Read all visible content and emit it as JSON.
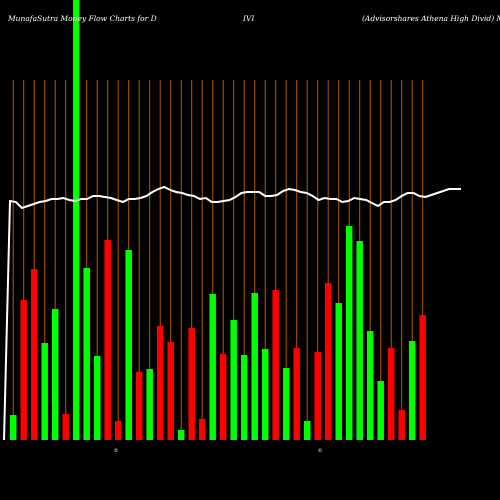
{
  "title": {
    "left": "MunafaSutra  Money Flow  Charts for D",
    "middle": "IVI",
    "right": "(Advisorshares Athena  High Divid) Mu"
  },
  "colors": {
    "background": "#000000",
    "gridline": "#b35900",
    "inflow": "#00ff00",
    "outflow": "#ff0000",
    "line": "#ffffff"
  },
  "chart_data": {
    "type": "bar",
    "title": "MunafaSutra  Money Flow  Charts for DIVI (Advisorshares Athena  High Divid) Mu",
    "ylim": [
      0,
      440
    ],
    "x_labels": [
      "",
      "",
      "",
      "",
      "",
      "",
      "",
      "",
      "",
      "",
      "",
      "",
      "",
      "",
      "",
      "",
      "",
      "",
      "",
      "",
      "",
      "",
      "",
      "",
      "",
      "",
      "",
      "",
      "",
      "",
      "",
      "",
      "",
      "",
      "",
      "",
      "",
      "",
      "",
      "",
      "",
      "",
      "",
      "",
      "",
      "",
      "",
      "",
      "",
      "",
      "",
      "",
      "",
      "",
      "",
      "",
      "",
      "",
      "",
      ""
    ],
    "center_marks": [
      "©",
      "©"
    ],
    "bars": [
      {
        "value": 25,
        "dir": "up"
      },
      {
        "value": 140,
        "dir": "down"
      },
      {
        "value": 171,
        "dir": "down"
      },
      {
        "value": 97,
        "dir": "up"
      },
      {
        "value": 131,
        "dir": "up"
      },
      {
        "value": 26,
        "dir": "down"
      },
      {
        "value": 440,
        "dir": "up"
      },
      {
        "value": 172,
        "dir": "up"
      },
      {
        "value": 84,
        "dir": "up"
      },
      {
        "value": 200,
        "dir": "down"
      },
      {
        "value": 19,
        "dir": "down"
      },
      {
        "value": 190,
        "dir": "up"
      },
      {
        "value": 68,
        "dir": "down"
      },
      {
        "value": 71,
        "dir": "up"
      },
      {
        "value": 114,
        "dir": "down"
      },
      {
        "value": 98,
        "dir": "down"
      },
      {
        "value": 10,
        "dir": "up"
      },
      {
        "value": 112,
        "dir": "down"
      },
      {
        "value": 21,
        "dir": "down"
      },
      {
        "value": 146,
        "dir": "up"
      },
      {
        "value": 86,
        "dir": "down"
      },
      {
        "value": 120,
        "dir": "up"
      },
      {
        "value": 85,
        "dir": "up"
      },
      {
        "value": 147,
        "dir": "up"
      },
      {
        "value": 91,
        "dir": "up"
      },
      {
        "value": 150,
        "dir": "down"
      },
      {
        "value": 72,
        "dir": "up"
      },
      {
        "value": 92,
        "dir": "down"
      },
      {
        "value": 19,
        "dir": "up"
      },
      {
        "value": 88,
        "dir": "down"
      },
      {
        "value": 157,
        "dir": "down"
      },
      {
        "value": 137,
        "dir": "up"
      },
      {
        "value": 214,
        "dir": "up"
      },
      {
        "value": 199,
        "dir": "up"
      },
      {
        "value": 109,
        "dir": "up"
      },
      {
        "value": 59,
        "dir": "up"
      },
      {
        "value": 92,
        "dir": "down"
      },
      {
        "value": 30,
        "dir": "down"
      },
      {
        "value": 99,
        "dir": "up"
      },
      {
        "value": 125,
        "dir": "down"
      }
    ],
    "line": [
      201,
      202,
      208,
      206,
      204,
      202,
      201,
      199,
      199,
      198,
      200,
      201,
      199,
      199,
      196,
      196,
      197,
      198,
      200,
      202,
      199,
      199,
      198,
      196,
      192,
      189,
      187,
      190,
      192,
      193,
      195,
      196,
      199,
      198,
      202,
      202,
      201,
      200,
      197,
      193,
      192,
      192,
      192,
      196,
      196,
      195,
      191,
      189,
      190,
      192,
      193,
      196,
      200,
      198,
      199,
      199,
      202,
      201,
      198,
      199,
      200,
      203,
      206,
      202,
      202,
      200,
      196,
      193,
      193,
      196,
      197,
      195,
      193,
      191,
      189,
      189,
      189
    ],
    "line_start": [
      4,
      440
    ]
  }
}
